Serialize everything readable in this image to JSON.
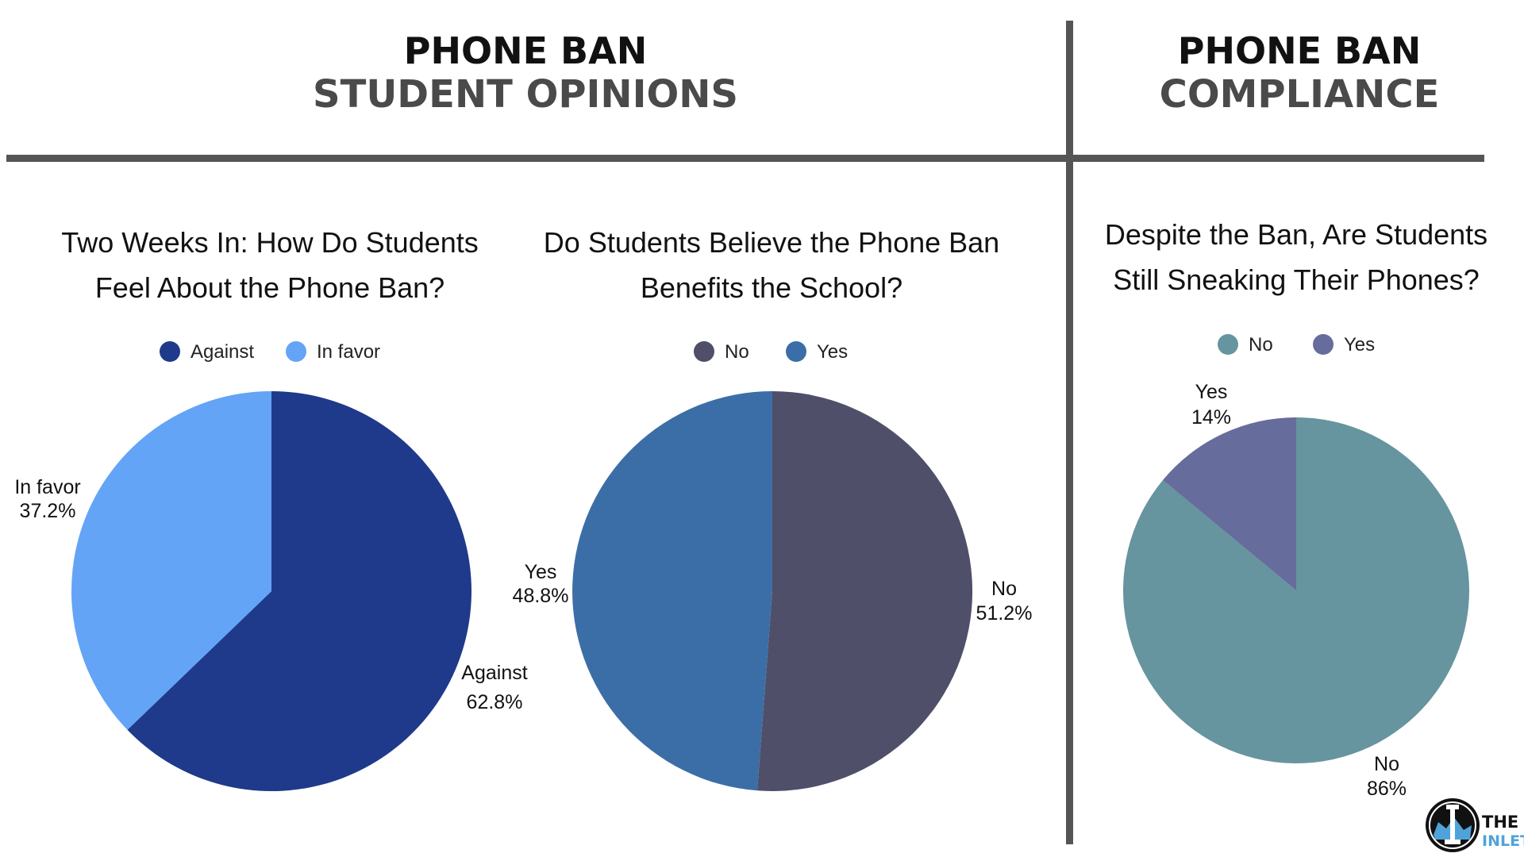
{
  "sections": {
    "opinions": {
      "line1": "PHONE BAN",
      "line2": "STUDENT OPINIONS"
    },
    "compliance": {
      "line1": "PHONE BAN",
      "line2": "COMPLIANCE"
    }
  },
  "colors": {
    "against": "#1f3a8a",
    "in_favor": "#63a4f7",
    "no_benefit": "#4f4f6a",
    "yes_benefit": "#3b6ea6",
    "no_sneak": "#66949f",
    "yes_sneak": "#666c9c",
    "divider": "#555555"
  },
  "chart_data": [
    {
      "type": "pie",
      "title": [
        "Two Weeks In: How Do Students",
        "Feel About the Phone Ban?"
      ],
      "legend": [
        "Against",
        "In favor"
      ],
      "slices": [
        {
          "name": "Against",
          "value": 62.8,
          "label": "62.8%",
          "color": "#1f3a8a"
        },
        {
          "name": "In favor",
          "value": 37.2,
          "label": "37.2%",
          "color": "#63a4f7"
        }
      ]
    },
    {
      "type": "pie",
      "title": [
        "Do Students Believe the Phone Ban",
        "Benefits the School?"
      ],
      "legend": [
        "No",
        "Yes"
      ],
      "slices": [
        {
          "name": "No",
          "value": 51.2,
          "label": "51.2%",
          "color": "#4f4f6a"
        },
        {
          "name": "Yes",
          "value": 48.8,
          "label": "48.8%",
          "color": "#3b6ea6"
        }
      ]
    },
    {
      "type": "pie",
      "title": [
        "Despite the Ban, Are Students",
        "Still Sneaking Their Phones?"
      ],
      "legend": [
        "No",
        "Yes"
      ],
      "slices": [
        {
          "name": "No",
          "value": 86,
          "label": "86%",
          "color": "#66949f"
        },
        {
          "name": "Yes",
          "value": 14,
          "label": "14%",
          "color": "#666c9c"
        }
      ]
    }
  ],
  "logo": {
    "line1": "THE",
    "line2": "INLET",
    "icon": "inlet-logo-icon"
  }
}
